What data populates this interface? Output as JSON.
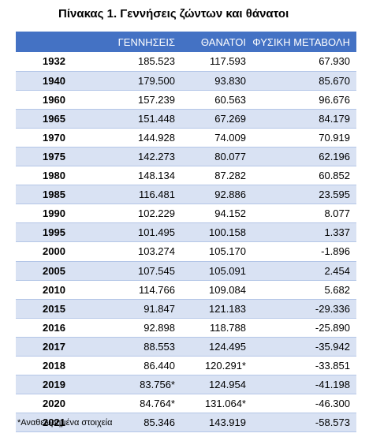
{
  "title": "Πίνακας 1. Γεννήσεις ζώντων και θάνατοι",
  "headers": {
    "year": "",
    "births": "ΓΕΝΝΗΣΕΙΣ",
    "deaths": "ΘΑΝΑΤΟΙ",
    "change": "ΦΥΣΙΚΗ ΜΕΤΑΒΟΛΗ"
  },
  "rows": [
    {
      "year": "1932",
      "births": "185.523",
      "deaths": "117.593",
      "change": "67.930"
    },
    {
      "year": "1940",
      "births": "179.500",
      "deaths": "93.830",
      "change": "85.670"
    },
    {
      "year": "1960",
      "births": "157.239",
      "deaths": "60.563",
      "change": "96.676"
    },
    {
      "year": "1965",
      "births": "151.448",
      "deaths": "67.269",
      "change": "84.179"
    },
    {
      "year": "1970",
      "births": "144.928",
      "deaths": "74.009",
      "change": "70.919"
    },
    {
      "year": "1975",
      "births": "142.273",
      "deaths": "80.077",
      "change": "62.196"
    },
    {
      "year": "1980",
      "births": "148.134",
      "deaths": "87.282",
      "change": "60.852"
    },
    {
      "year": "1985",
      "births": "116.481",
      "deaths": "92.886",
      "change": "23.595"
    },
    {
      "year": "1990",
      "births": "102.229",
      "deaths": "94.152",
      "change": "8.077"
    },
    {
      "year": "1995",
      "births": "101.495",
      "deaths": "100.158",
      "change": "1.337"
    },
    {
      "year": "2000",
      "births": "103.274",
      "deaths": "105.170",
      "change": "-1.896"
    },
    {
      "year": "2005",
      "births": "107.545",
      "deaths": "105.091",
      "change": "2.454"
    },
    {
      "year": "2010",
      "births": "114.766",
      "deaths": "109.084",
      "change": "5.682"
    },
    {
      "year": "2015",
      "births": "91.847",
      "deaths": "121.183",
      "change": "-29.336"
    },
    {
      "year": "2016",
      "births": "92.898",
      "deaths": "118.788",
      "change": "-25.890"
    },
    {
      "year": "2017",
      "births": "88.553",
      "deaths": "124.495",
      "change": "-35.942"
    },
    {
      "year": "2018",
      "births": "86.440",
      "deaths": "120.291*",
      "change": "-33.851"
    },
    {
      "year": "2019",
      "births": "83.756*",
      "deaths": "124.954",
      "change": "-41.198"
    },
    {
      "year": "2020",
      "births": "84.764*",
      "deaths": "131.064*",
      "change": "-46.300"
    },
    {
      "year": "2021",
      "births": "85.346",
      "deaths": "143.919",
      "change": "-58.573"
    }
  ],
  "footnote": "*Αναθεωρημένα στοιχεία",
  "colors": {
    "header_bg": "#4472c4",
    "stripe": "#d9e2f3"
  }
}
